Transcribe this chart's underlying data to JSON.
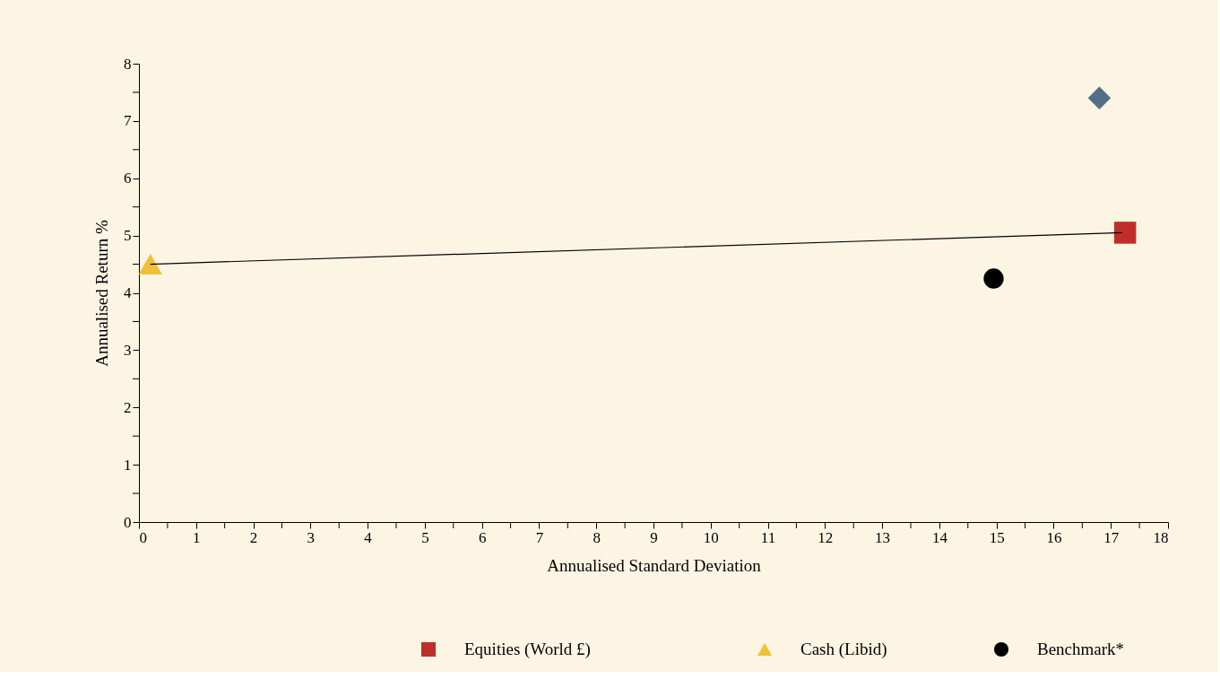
{
  "chart_data": {
    "type": "scatter",
    "xlabel": "Annualised Standard Deviation",
    "ylabel": "Annualised Return %",
    "series": [
      {
        "type": "line",
        "color": "#000000",
        "x": [
          0.2,
          17.2
        ],
        "values": [
          4.5,
          5.05
        ],
        "marker": "none"
      },
      {
        "color": "#536e85",
        "x": [
          16.8
        ],
        "values": [
          7.4
        ],
        "marker": "diamond"
      },
      {
        "name": "Equities (World £)",
        "color": "#bf2f2a",
        "x": [
          17.25
        ],
        "values": [
          5.05
        ],
        "marker": "square"
      },
      {
        "name": "Cash (Libid)",
        "color": "#eec138",
        "x": [
          0.2
        ],
        "values": [
          4.5
        ],
        "marker": "triangle"
      },
      {
        "name": "Benchmark*",
        "color": "#000000",
        "x": [
          14.95
        ],
        "values": [
          4.25
        ],
        "marker": "circle"
      }
    ],
    "xlim": [
      0,
      18
    ],
    "ylim": [
      0,
      8
    ],
    "xticks": [
      0,
      {
        "value": 0.5,
        "label": null
      },
      1,
      {
        "value": 1.5,
        "label": null
      },
      2,
      {
        "value": 2.5,
        "label": null
      },
      3,
      {
        "value": 3.5,
        "label": null
      },
      4,
      {
        "value": 4.5,
        "label": null
      },
      5,
      {
        "value": 5.5,
        "label": null
      },
      6,
      {
        "value": 6.5,
        "label": null
      },
      7,
      {
        "value": 7.5,
        "label": null
      },
      8,
      {
        "value": 8.5,
        "label": null
      },
      9,
      {
        "value": 9.5,
        "label": null
      },
      10,
      {
        "value": 10.5,
        "label": null
      },
      11,
      {
        "value": 11.5,
        "label": null
      },
      12,
      {
        "value": 12.5,
        "label": null
      },
      13,
      {
        "value": 13.5,
        "label": null
      },
      14,
      {
        "value": 14.5,
        "label": null
      },
      15,
      {
        "value": 15.5,
        "label": null
      },
      16,
      {
        "value": 16.5,
        "label": null
      },
      17,
      {
        "value": 17.5,
        "label": null
      },
      18
    ],
    "yticks": [
      0,
      {
        "value": 0.5,
        "label": null
      },
      1,
      {
        "value": 1.5,
        "label": null
      },
      2,
      {
        "value": 2.5,
        "label": null
      },
      3,
      {
        "value": 3.5,
        "label": null
      },
      4,
      {
        "value": 4.5,
        "label": null
      },
      5,
      {
        "value": 5.5,
        "label": null
      },
      6,
      {
        "value": 6.5,
        "label": null
      },
      7,
      {
        "value": 7.5,
        "label": null
      },
      8
    ],
    "grid": false,
    "legend": "bottom"
  }
}
